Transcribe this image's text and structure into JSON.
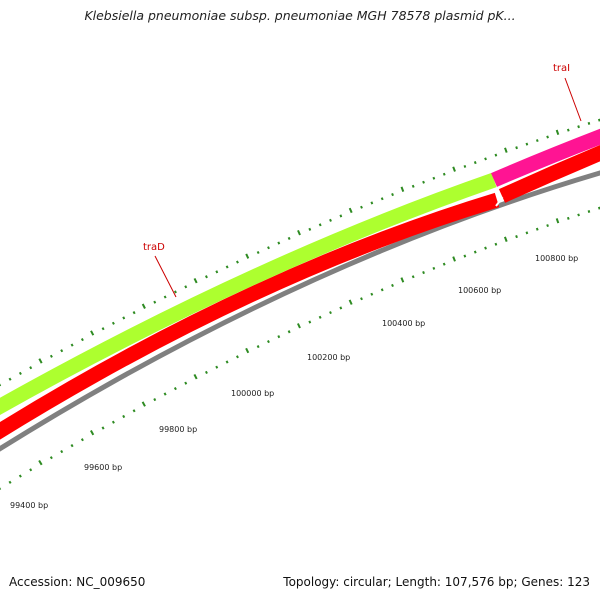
{
  "title": "Klebsiella pneumoniae subsp. pneumoniae MGH 78578 plasmid pK...",
  "accession_line": "Accession: NC_009650",
  "summary_line": "Topology: circular; Length: 107,576 bp; Genes: 123",
  "colors": {
    "tick": "#2e8b22",
    "gene_forward": "#adff2f",
    "gene_traI": "#ff1493",
    "gene_reverse": "#ff0000",
    "backbone": "#808080",
    "gene_label": "#cc0000",
    "axis_label": "#222222"
  },
  "genes": [
    {
      "name": "traD",
      "strand": "forward",
      "color": "#adff2f"
    },
    {
      "name": "traI",
      "strand": "forward",
      "color": "#ff1493"
    },
    {
      "name": "",
      "strand": "reverse",
      "color": "#ff0000"
    },
    {
      "name": "",
      "strand": "reverse",
      "color": "#ff0000"
    }
  ],
  "scale_labels": [
    "99400 bp",
    "99600 bp",
    "99800 bp",
    "100000 bp",
    "100200 bp",
    "100400 bp",
    "100600 bp",
    "100800 bp"
  ]
}
